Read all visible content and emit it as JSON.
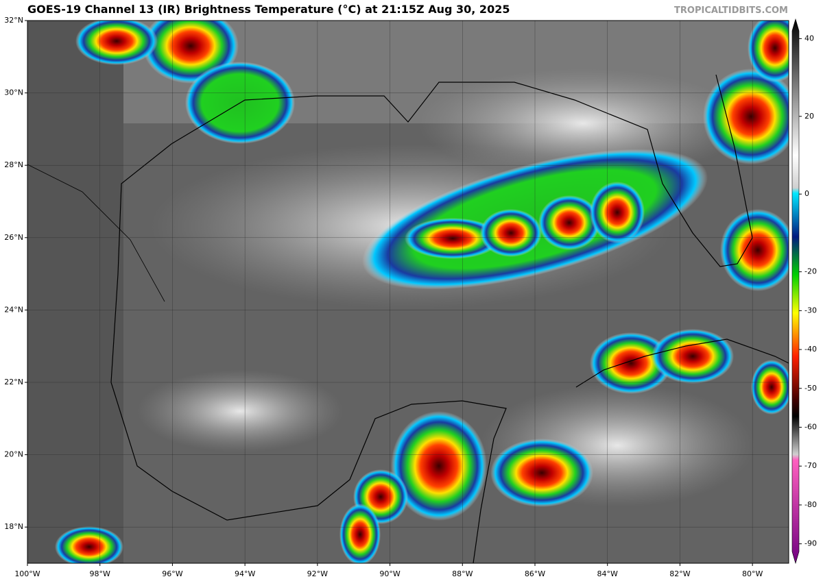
{
  "header": {
    "title": "GOES-19 Channel 13 (IR) Brightness Temperature (°C) at 21:15Z Aug 30, 2025",
    "credit": "TROPICALTIDBITS.COM"
  },
  "map": {
    "xlim": [
      -100,
      -79
    ],
    "ylim": [
      17,
      32
    ],
    "lat_ticks": [
      {
        "value": 32,
        "label": "32°N"
      },
      {
        "value": 30,
        "label": "30°N"
      },
      {
        "value": 28,
        "label": "28°N"
      },
      {
        "value": 26,
        "label": "26°N"
      },
      {
        "value": 24,
        "label": "24°N"
      },
      {
        "value": 22,
        "label": "22°N"
      },
      {
        "value": 20,
        "label": "20°N"
      },
      {
        "value": 18,
        "label": "18°N"
      }
    ],
    "lon_ticks": [
      {
        "value": -100,
        "label": "100°W"
      },
      {
        "value": -98,
        "label": "98°W"
      },
      {
        "value": -96,
        "label": "96°W"
      },
      {
        "value": -94,
        "label": "94°W"
      },
      {
        "value": -92,
        "label": "92°W"
      },
      {
        "value": -90,
        "label": "90°W"
      },
      {
        "value": -88,
        "label": "88°W"
      },
      {
        "value": -86,
        "label": "86°W"
      },
      {
        "value": -84,
        "label": "84°W"
      },
      {
        "value": -82,
        "label": "82°W"
      },
      {
        "value": -80,
        "label": "80°W"
      }
    ]
  },
  "colorbar": {
    "clim": [
      -95,
      45
    ],
    "ticks": [
      40,
      20,
      0,
      -20,
      -30,
      -40,
      -50,
      -60,
      -70,
      -80,
      -90
    ]
  }
}
